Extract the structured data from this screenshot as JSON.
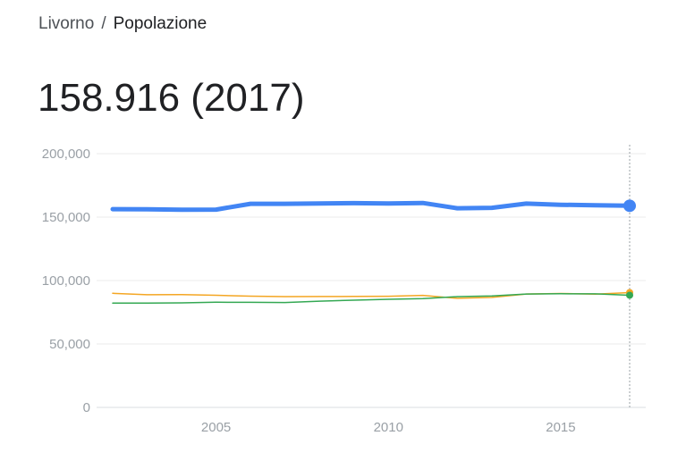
{
  "breadcrumb": {
    "parent": "Livorno",
    "separator": "/",
    "current": "Popolazione"
  },
  "headline": {
    "value": "158.916",
    "year_label": "(2017)"
  },
  "chart_data": {
    "type": "line",
    "title": "",
    "xlabel": "",
    "ylabel": "",
    "xlim": [
      2002,
      2017
    ],
    "ylim": [
      0,
      200000
    ],
    "x_ticks": [
      "2005",
      "2010",
      "2015"
    ],
    "y_ticks": [
      "0",
      "50,000",
      "100,000",
      "150,000",
      "200,000"
    ],
    "grid": true,
    "legend": "none",
    "x": [
      2002,
      2003,
      2004,
      2005,
      2006,
      2007,
      2008,
      2009,
      2010,
      2011,
      2012,
      2013,
      2014,
      2015,
      2016,
      2017
    ],
    "series": [
      {
        "color": "#4285f4",
        "width": 5,
        "marker_radius": 7,
        "values": [
          156300,
          156100,
          155800,
          155900,
          160500,
          160500,
          160800,
          161000,
          160700,
          161100,
          157000,
          157300,
          160600,
          159700,
          159400,
          158916
        ]
      },
      {
        "color": "#f4a623",
        "width": 1.5,
        "marker_radius": 4,
        "values": [
          89900,
          88800,
          88900,
          88400,
          87700,
          87300,
          87400,
          87500,
          87600,
          88300,
          86000,
          86700,
          89400,
          89800,
          89300,
          90500
        ]
      },
      {
        "color": "#34a853",
        "width": 1.5,
        "marker_radius": 4,
        "values": [
          82200,
          82200,
          82400,
          82900,
          82800,
          82700,
          83700,
          84500,
          85200,
          85700,
          87300,
          87900,
          89400,
          89600,
          89500,
          88400
        ]
      }
    ]
  }
}
